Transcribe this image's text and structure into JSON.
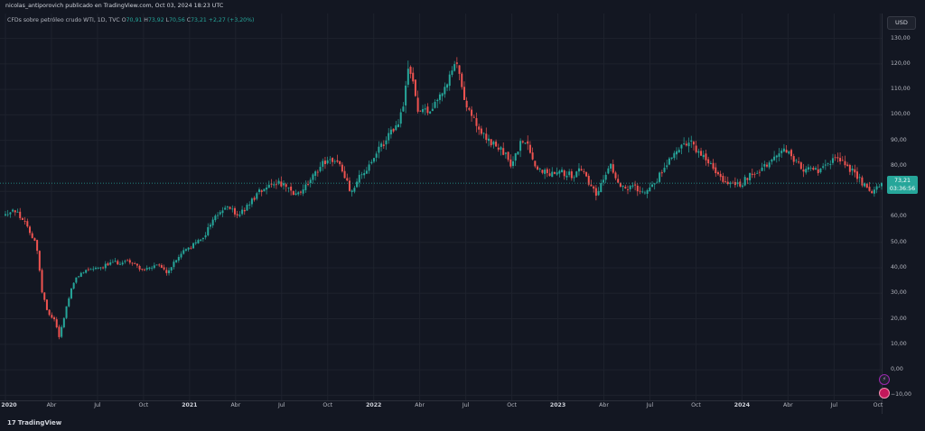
{
  "header": {
    "published": "nicolas_antiporovich publicado en TradingView.com, Oct 03, 2024 18:23 UTC"
  },
  "legend": {
    "symbol": "CFDs sobre petróleo crudo WTI, 1D, TVC",
    "o_label": "O",
    "o_value": "70,91",
    "h_label": "H",
    "h_value": "73,92",
    "l_label": "L",
    "l_value": "70,56",
    "c_label": "C",
    "c_value": "73,21",
    "change": "+2,27 (+3,20%)"
  },
  "currency": "USD",
  "price_tag": {
    "price": "73,21",
    "countdown": "03:36:56"
  },
  "footer": {
    "brand": "TradingView",
    "logo": "17"
  },
  "colors": {
    "background": "#131722",
    "up": "#26a69a",
    "down": "#ef5350",
    "grid": "#1e222d"
  },
  "icons": {
    "alert": "lightning-icon",
    "flag": "flag-icon"
  },
  "chart_data": {
    "type": "candlestick",
    "yaxis": {
      "ticks": [
        130,
        120,
        110,
        100,
        90,
        80,
        70,
        60,
        50,
        40,
        30,
        20,
        10,
        0,
        -10
      ],
      "tick_labels": [
        "130,00",
        "120,00",
        "110,00",
        "100,00",
        "90,00",
        "80,00",
        "70,00",
        "60,00",
        "50,00",
        "40,00",
        "30,00",
        "20,00",
        "10,00",
        "0,00",
        "−10,00"
      ],
      "ylim": [
        -12,
        138
      ]
    },
    "xaxis": {
      "ticks": [
        {
          "label": "2020",
          "t": 0,
          "bold": true
        },
        {
          "label": "Abr",
          "t": 3
        },
        {
          "label": "Jul",
          "t": 6
        },
        {
          "label": "Oct",
          "t": 9
        },
        {
          "label": "2021",
          "t": 12,
          "bold": true
        },
        {
          "label": "Abr",
          "t": 15
        },
        {
          "label": "Jul",
          "t": 18
        },
        {
          "label": "Oct",
          "t": 21
        },
        {
          "label": "2022",
          "t": 24,
          "bold": true
        },
        {
          "label": "Abr",
          "t": 27
        },
        {
          "label": "Jul",
          "t": 30
        },
        {
          "label": "Oct",
          "t": 33
        },
        {
          "label": "2023",
          "t": 36,
          "bold": true
        },
        {
          "label": "Abr",
          "t": 39
        },
        {
          "label": "Jul",
          "t": 42
        },
        {
          "label": "Oct",
          "t": 45
        },
        {
          "label": "2024",
          "t": 48,
          "bold": true
        },
        {
          "label": "Abr",
          "t": 51
        },
        {
          "label": "Jul",
          "t": 54
        },
        {
          "label": "Oct",
          "t": 57
        }
      ],
      "xlim": [
        0,
        57.1
      ]
    },
    "series": [
      {
        "values": [
          [
            0,
            61
          ],
          [
            0.5,
            63
          ],
          [
            1,
            60
          ],
          [
            1.5,
            55
          ],
          [
            2,
            50
          ],
          [
            2.4,
            30
          ],
          [
            2.8,
            22
          ],
          [
            3.2,
            20
          ],
          [
            3.5,
            13
          ],
          [
            3.8,
            20
          ],
          [
            4.1,
            28
          ],
          [
            4.5,
            35
          ],
          [
            5,
            38
          ],
          [
            5.5,
            40
          ],
          [
            6,
            40
          ],
          [
            6.5,
            41
          ],
          [
            7,
            42
          ],
          [
            7.5,
            42
          ],
          [
            8,
            43
          ],
          [
            8.5,
            41
          ],
          [
            9,
            39
          ],
          [
            9.5,
            40
          ],
          [
            10,
            41
          ],
          [
            10.5,
            38
          ],
          [
            11,
            42
          ],
          [
            11.5,
            46
          ],
          [
            12,
            48
          ],
          [
            12.5,
            50
          ],
          [
            13,
            53
          ],
          [
            13.5,
            59
          ],
          [
            14,
            62
          ],
          [
            14.5,
            64
          ],
          [
            15,
            61
          ],
          [
            15.5,
            62
          ],
          [
            16,
            66
          ],
          [
            16.5,
            70
          ],
          [
            17,
            72
          ],
          [
            17.5,
            74
          ],
          [
            18,
            73
          ],
          [
            18.5,
            70
          ],
          [
            19,
            68
          ],
          [
            19.5,
            72
          ],
          [
            20,
            75
          ],
          [
            20.5,
            80
          ],
          [
            21,
            83
          ],
          [
            21.5,
            82
          ],
          [
            22,
            78
          ],
          [
            22.5,
            70
          ],
          [
            23,
            75
          ],
          [
            23.5,
            78
          ],
          [
            24,
            82
          ],
          [
            24.5,
            88
          ],
          [
            25,
            92
          ],
          [
            25.5,
            95
          ],
          [
            26,
            105
          ],
          [
            26.3,
            122
          ],
          [
            26.6,
            110
          ],
          [
            27,
            100
          ],
          [
            27.5,
            102
          ],
          [
            28,
            105
          ],
          [
            28.5,
            110
          ],
          [
            29,
            115
          ],
          [
            29.4,
            120
          ],
          [
            29.8,
            110
          ],
          [
            30,
            105
          ],
          [
            30.5,
            98
          ],
          [
            31,
            92
          ],
          [
            31.5,
            90
          ],
          [
            32,
            87
          ],
          [
            32.5,
            85
          ],
          [
            33,
            80
          ],
          [
            33.5,
            88
          ],
          [
            34,
            90
          ],
          [
            34.5,
            80
          ],
          [
            35,
            78
          ],
          [
            35.5,
            77
          ],
          [
            36,
            79
          ],
          [
            36.5,
            77
          ],
          [
            37,
            76
          ],
          [
            37.5,
            79
          ],
          [
            38,
            74
          ],
          [
            38.5,
            69
          ],
          [
            39,
            75
          ],
          [
            39.5,
            80
          ],
          [
            40,
            73
          ],
          [
            40.5,
            71
          ],
          [
            41,
            72
          ],
          [
            41.5,
            70
          ],
          [
            42,
            72
          ],
          [
            42.5,
            75
          ],
          [
            43,
            80
          ],
          [
            43.5,
            85
          ],
          [
            44,
            88
          ],
          [
            44.5,
            90
          ],
          [
            45,
            86
          ],
          [
            45.5,
            83
          ],
          [
            46,
            80
          ],
          [
            46.5,
            76
          ],
          [
            47,
            73
          ],
          [
            47.5,
            72
          ],
          [
            48,
            73
          ],
          [
            48.5,
            77
          ],
          [
            49,
            78
          ],
          [
            49.5,
            80
          ],
          [
            50,
            82
          ],
          [
            50.5,
            85
          ],
          [
            51,
            86
          ],
          [
            51.5,
            82
          ],
          [
            52,
            78
          ],
          [
            52.5,
            79
          ],
          [
            53,
            77
          ],
          [
            53.5,
            80
          ],
          [
            54,
            83
          ],
          [
            54.5,
            82
          ],
          [
            55,
            79
          ],
          [
            55.5,
            76
          ],
          [
            56,
            72
          ],
          [
            56.4,
            69
          ],
          [
            56.8,
            71
          ],
          [
            57.1,
            73.21
          ]
        ]
      }
    ],
    "last_price": 73.21
  }
}
